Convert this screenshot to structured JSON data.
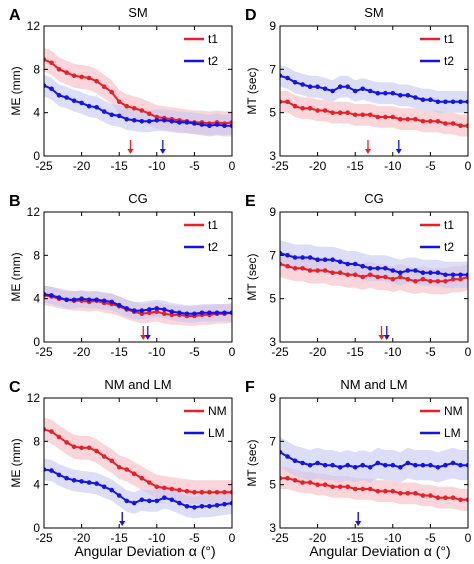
{
  "figure": {
    "xlabel_left": "Angular Deviation α (°)",
    "xlabel_right": "Angular Deviation α (°)"
  },
  "chart_data": [
    {
      "type": "line",
      "panel_letter": "A",
      "title": "SM",
      "xlabel": "",
      "ylabel": "ME (mm)",
      "xlim": [
        -25,
        0
      ],
      "ylim": [
        0,
        12
      ],
      "xticks": [
        -25,
        -20,
        -15,
        -10,
        -5,
        0
      ],
      "yticks": [
        0,
        4,
        8,
        12
      ],
      "legend_position": "top-right",
      "x": [
        -25,
        -24,
        -23,
        -22,
        -21,
        -20,
        -19,
        -18,
        -17,
        -16,
        -15,
        -14,
        -13,
        -12,
        -11,
        -10,
        -9,
        -8,
        -7,
        -6,
        -5,
        -4,
        -3,
        -2,
        -1,
        0
      ],
      "series": [
        {
          "name": "t1",
          "color": "#e8202a",
          "band_color": "#f7b9bf",
          "band": 1.1,
          "values": [
            8.9,
            8.6,
            8.0,
            7.7,
            7.4,
            7.3,
            7.2,
            6.9,
            6.4,
            5.9,
            5.0,
            4.6,
            4.4,
            4.2,
            3.9,
            3.6,
            3.5,
            3.4,
            3.3,
            3.2,
            3.1,
            3.1,
            3.0,
            3.1,
            3.0,
            3.1
          ]
        },
        {
          "name": "t2",
          "color": "#1414e6",
          "band_color": "#c4c8f2",
          "band": 1.0,
          "values": [
            6.5,
            6.2,
            5.6,
            5.4,
            5.1,
            4.9,
            4.6,
            4.5,
            4.1,
            3.8,
            3.7,
            3.4,
            3.3,
            3.2,
            3.2,
            3.3,
            3.3,
            3.2,
            3.1,
            3.1,
            3.0,
            2.9,
            2.8,
            2.9,
            2.8,
            2.8
          ]
        }
      ],
      "arrows": [
        {
          "x": -13.5,
          "color": "#e8202a"
        },
        {
          "x": -9.2,
          "color": "#1414e6"
        }
      ]
    },
    {
      "type": "line",
      "panel_letter": "B",
      "title": "CG",
      "xlabel": "",
      "ylabel": "ME (mm)",
      "xlim": [
        -25,
        0
      ],
      "ylim": [
        0,
        12
      ],
      "xticks": [
        -25,
        -20,
        -15,
        -10,
        -5,
        0
      ],
      "yticks": [
        0,
        4,
        8,
        12
      ],
      "legend_position": "top-right",
      "x": [
        -25,
        -24,
        -23,
        -22,
        -21,
        -20,
        -19,
        -18,
        -17,
        -16,
        -15,
        -14,
        -13,
        -12,
        -11,
        -10,
        -9,
        -8,
        -7,
        -6,
        -5,
        -4,
        -3,
        -2,
        -1,
        0
      ],
      "series": [
        {
          "name": "t1",
          "color": "#e8202a",
          "band_color": "#f7b9bf",
          "band": 0.9,
          "values": [
            4.3,
            4.2,
            4.0,
            3.9,
            3.8,
            3.8,
            3.7,
            3.8,
            3.6,
            3.5,
            3.3,
            3.0,
            2.8,
            2.6,
            2.7,
            2.8,
            2.6,
            2.5,
            2.5,
            2.4,
            2.4,
            2.5,
            2.5,
            2.6,
            2.6,
            2.7
          ]
        },
        {
          "name": "t2",
          "color": "#1414e6",
          "band_color": "#c4c8f2",
          "band": 0.8,
          "values": [
            4.4,
            4.3,
            4.1,
            3.9,
            3.9,
            4.0,
            3.9,
            3.9,
            3.8,
            3.7,
            3.4,
            3.1,
            2.9,
            2.9,
            3.0,
            3.1,
            3.0,
            2.8,
            2.7,
            2.6,
            2.6,
            2.7,
            2.7,
            2.7,
            2.7,
            2.7
          ]
        }
      ],
      "arrows": [
        {
          "x": -11.8,
          "color": "#e8202a"
        },
        {
          "x": -11.2,
          "color": "#1414e6"
        }
      ]
    },
    {
      "type": "line",
      "panel_letter": "C",
      "title": "NM and LM",
      "xlabel": "Angular Deviation α (°)",
      "ylabel": "ME (mm)",
      "xlim": [
        -25,
        0
      ],
      "ylim": [
        0,
        12
      ],
      "xticks": [
        -25,
        -20,
        -15,
        -10,
        -5,
        0
      ],
      "yticks": [
        0,
        4,
        8,
        12
      ],
      "legend_position": "top-right",
      "x": [
        -25,
        -24,
        -23,
        -22,
        -21,
        -20,
        -19,
        -18,
        -17,
        -16,
        -15,
        -14,
        -13,
        -12,
        -11,
        -10,
        -9,
        -8,
        -7,
        -6,
        -5,
        -4,
        -3,
        -2,
        -1,
        0
      ],
      "series": [
        {
          "name": "NM",
          "color": "#e8202a",
          "band_color": "#f7b9bf",
          "band": 1.1,
          "values": [
            9.1,
            8.9,
            8.4,
            7.9,
            7.5,
            7.4,
            7.4,
            7.1,
            6.6,
            6.2,
            5.6,
            5.4,
            5.0,
            4.6,
            4.2,
            3.8,
            3.7,
            3.6,
            3.5,
            3.4,
            3.3,
            3.3,
            3.3,
            3.3,
            3.3,
            3.3
          ]
        },
        {
          "name": "LM",
          "color": "#1414e6",
          "band_color": "#c4c8f2",
          "band": 1.0,
          "values": [
            5.4,
            5.3,
            4.9,
            4.6,
            4.4,
            4.3,
            4.2,
            4.1,
            3.8,
            3.5,
            3.0,
            2.5,
            2.3,
            2.6,
            2.5,
            2.5,
            2.8,
            2.6,
            2.3,
            2.0,
            1.9,
            2.0,
            2.0,
            2.1,
            2.2,
            2.3
          ]
        }
      ],
      "arrows": [
        {
          "x": -14.6,
          "color": "#e8202a"
        },
        {
          "x": -14.6,
          "color": "#1414e6"
        }
      ]
    },
    {
      "type": "line",
      "panel_letter": "D",
      "title": "SM",
      "xlabel": "",
      "ylabel": "MT (sec)",
      "xlim": [
        -25,
        0
      ],
      "ylim": [
        3,
        9
      ],
      "xticks": [
        -25,
        -20,
        -15,
        -10,
        -5,
        0
      ],
      "yticks": [
        3,
        5,
        7,
        9
      ],
      "legend_position": "top-right",
      "x": [
        -25,
        -24,
        -23,
        -22,
        -21,
        -20,
        -19,
        -18,
        -17,
        -16,
        -15,
        -14,
        -13,
        -12,
        -11,
        -10,
        -9,
        -8,
        -7,
        -6,
        -5,
        -4,
        -3,
        -2,
        -1,
        0
      ],
      "series": [
        {
          "name": "t1",
          "color": "#e8202a",
          "band_color": "#f7b9bf",
          "band": 0.5,
          "values": [
            5.5,
            5.5,
            5.3,
            5.2,
            5.2,
            5.1,
            5.1,
            5.0,
            5.0,
            5.0,
            4.9,
            4.9,
            4.9,
            4.8,
            4.8,
            4.8,
            4.7,
            4.7,
            4.7,
            4.6,
            4.6,
            4.6,
            4.5,
            4.5,
            4.4,
            4.4
          ]
        },
        {
          "name": "t2",
          "color": "#1414e6",
          "band_color": "#c4c8f2",
          "band": 0.5,
          "values": [
            6.7,
            6.6,
            6.4,
            6.3,
            6.2,
            6.2,
            6.1,
            6.0,
            6.2,
            6.2,
            6.0,
            6.1,
            6.0,
            5.9,
            5.9,
            5.9,
            5.8,
            5.8,
            5.7,
            5.6,
            5.6,
            5.5,
            5.5,
            5.5,
            5.5,
            5.5
          ]
        }
      ],
      "arrows": [
        {
          "x": -13.3,
          "color": "#e8202a"
        },
        {
          "x": -9.2,
          "color": "#1414e6"
        }
      ]
    },
    {
      "type": "line",
      "panel_letter": "E",
      "title": "CG",
      "xlabel": "",
      "ylabel": "MT (sec)",
      "xlim": [
        -25,
        0
      ],
      "ylim": [
        3,
        9
      ],
      "xticks": [
        -25,
        -20,
        -15,
        -10,
        -5,
        0
      ],
      "yticks": [
        3,
        5,
        7,
        9
      ],
      "legend_position": "top-right",
      "x": [
        -25,
        -24,
        -23,
        -22,
        -21,
        -20,
        -19,
        -18,
        -17,
        -16,
        -15,
        -14,
        -13,
        -12,
        -11,
        -10,
        -9,
        -8,
        -7,
        -6,
        -5,
        -4,
        -3,
        -2,
        -1,
        0
      ],
      "series": [
        {
          "name": "t1",
          "color": "#e8202a",
          "band_color": "#f7b9bf",
          "band": 0.6,
          "values": [
            6.6,
            6.5,
            6.4,
            6.4,
            6.3,
            6.3,
            6.3,
            6.2,
            6.2,
            6.1,
            6.1,
            6.0,
            6.1,
            6.0,
            6.0,
            5.9,
            6.0,
            5.9,
            5.8,
            5.9,
            5.8,
            5.8,
            5.8,
            5.9,
            5.9,
            6.0
          ]
        },
        {
          "name": "t2",
          "color": "#1414e6",
          "band_color": "#c4c8f2",
          "band": 0.6,
          "values": [
            7.1,
            7.0,
            6.9,
            6.9,
            6.9,
            6.8,
            6.8,
            6.8,
            6.7,
            6.6,
            6.6,
            6.5,
            6.4,
            6.4,
            6.4,
            6.3,
            6.2,
            6.3,
            6.3,
            6.2,
            6.2,
            6.2,
            6.1,
            6.1,
            6.1,
            6.1
          ]
        }
      ],
      "arrows": [
        {
          "x": -11.5,
          "color": "#e8202a"
        },
        {
          "x": -10.8,
          "color": "#1414e6"
        }
      ]
    },
    {
      "type": "line",
      "panel_letter": "F",
      "title": "NM and LM",
      "xlabel": "Angular Deviation α (°)",
      "ylabel": "MT (sec)",
      "xlim": [
        -25,
        0
      ],
      "ylim": [
        3,
        9
      ],
      "xticks": [
        -25,
        -20,
        -15,
        -10,
        -5,
        0
      ],
      "yticks": [
        3,
        5,
        7,
        9
      ],
      "legend_position": "top-right",
      "x": [
        -25,
        -24,
        -23,
        -22,
        -21,
        -20,
        -19,
        -18,
        -17,
        -16,
        -15,
        -14,
        -13,
        -12,
        -11,
        -10,
        -9,
        -8,
        -7,
        -6,
        -5,
        -4,
        -3,
        -2,
        -1,
        0
      ],
      "series": [
        {
          "name": "NM",
          "color": "#e8202a",
          "band_color": "#f7b9bf",
          "band": 0.5,
          "values": [
            5.3,
            5.3,
            5.2,
            5.1,
            5.1,
            5.0,
            5.0,
            4.9,
            4.9,
            4.9,
            4.8,
            4.8,
            4.8,
            4.7,
            4.7,
            4.7,
            4.6,
            4.6,
            4.6,
            4.5,
            4.5,
            4.4,
            4.4,
            4.4,
            4.3,
            4.3
          ]
        },
        {
          "name": "LM",
          "color": "#1414e6",
          "band_color": "#c4c8f2",
          "band": 0.7,
          "values": [
            6.5,
            6.3,
            6.1,
            6.0,
            5.9,
            6.0,
            5.9,
            5.9,
            5.8,
            5.9,
            5.8,
            5.9,
            5.8,
            6.0,
            5.9,
            5.9,
            5.8,
            6.0,
            5.9,
            5.9,
            5.9,
            5.8,
            5.9,
            6.0,
            5.9,
            5.9
          ]
        }
      ],
      "arrows": [
        {
          "x": -14.6,
          "color": "#e8202a"
        },
        {
          "x": -14.6,
          "color": "#1414e6"
        }
      ]
    }
  ]
}
